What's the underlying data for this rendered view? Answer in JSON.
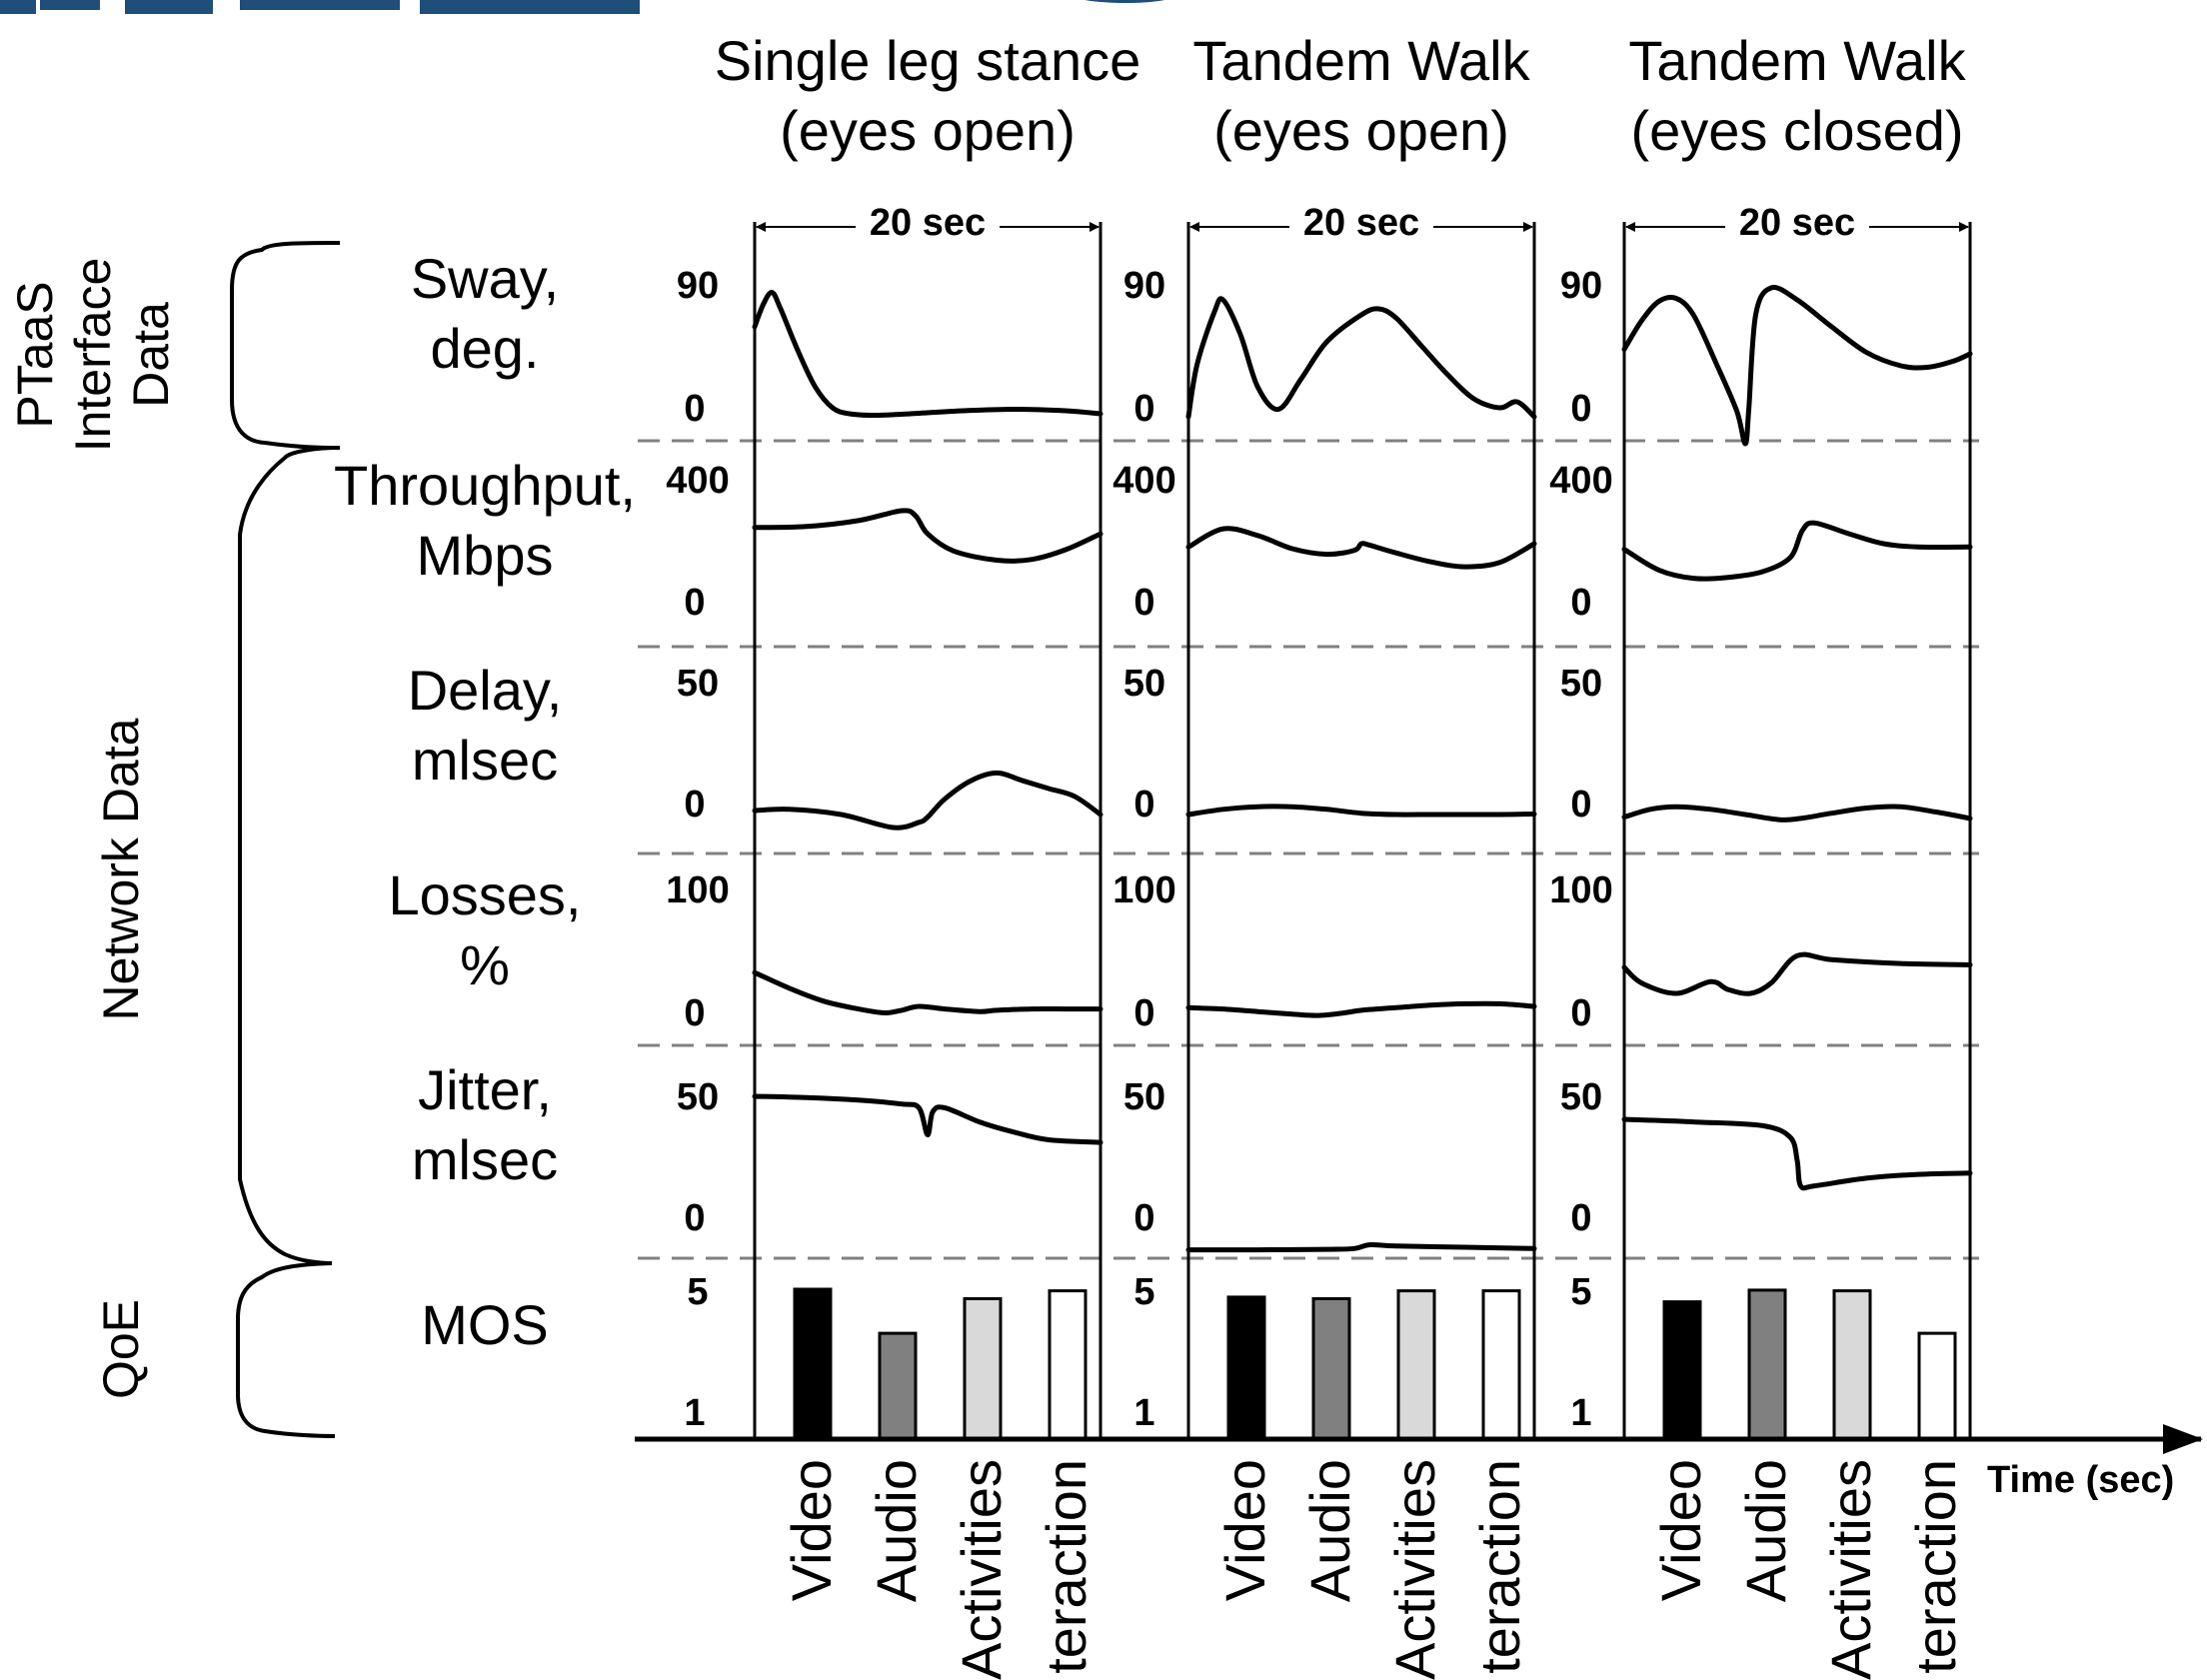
{
  "chart_data": {
    "type": "line",
    "x_axis_label": "Time (sec)",
    "duration_label": "20 sec",
    "groups": [
      {
        "label": "PTaaS Interface Data"
      },
      {
        "label": "Network Data"
      },
      {
        "label": "QoE"
      }
    ],
    "metrics": [
      {
        "key": "sway",
        "label_lines": [
          "Sway,",
          "deg."
        ],
        "ymax_label": "90",
        "ymin_label": "0",
        "ylim": [
          0,
          90
        ]
      },
      {
        "key": "throughput",
        "label_lines": [
          "Throughput,",
          "Mbps"
        ],
        "ymax_label": "400",
        "ymin_label": "0",
        "ylim": [
          0,
          400
        ]
      },
      {
        "key": "delay",
        "label_lines": [
          "Delay,",
          "mlsec"
        ],
        "ymax_label": "50",
        "ymin_label": "0",
        "ylim": [
          0,
          50
        ]
      },
      {
        "key": "losses",
        "label_lines": [
          "Losses,",
          "%"
        ],
        "ymax_label": "100",
        "ymin_label": "0",
        "ylim": [
          0,
          100
        ]
      },
      {
        "key": "jitter",
        "label_lines": [
          "Jitter,",
          "mlsec"
        ],
        "ymax_label": "50",
        "ymin_label": "0",
        "ylim": [
          0,
          50
        ]
      },
      {
        "key": "mos",
        "label_lines": [
          "MOS"
        ],
        "ymax_label": "5",
        "ymin_label": "1",
        "ylim": [
          1,
          5
        ]
      }
    ],
    "bar_categories": [
      "Video",
      "Audio",
      "Activities",
      "teraction"
    ],
    "bar_colors": [
      "#000000",
      "#808080",
      "#d9d9d9",
      "#ffffff"
    ],
    "tasks": [
      {
        "title_lines": [
          "Single leg stance",
          "(eyes open)"
        ],
        "series": {
          "sway": [
            [
              0,
              60
            ],
            [
              0.5,
              75
            ],
            [
              1,
              83
            ],
            [
              1.5,
              72
            ],
            [
              2.5,
              44
            ],
            [
              3.5,
              20
            ],
            [
              4.5,
              6
            ],
            [
              5.5,
              2
            ],
            [
              7,
              1
            ],
            [
              9,
              2
            ],
            [
              12,
              4
            ],
            [
              15,
              5
            ],
            [
              18,
              4
            ],
            [
              20,
              2
            ]
          ],
          "throughput": [
            [
              0,
              249
            ],
            [
              3,
              252
            ],
            [
              6,
              270
            ],
            [
              8.5,
              300
            ],
            [
              9.3,
              285
            ],
            [
              10,
              230
            ],
            [
              11.5,
              178
            ],
            [
              14,
              150
            ],
            [
              16,
              152
            ],
            [
              18,
              182
            ],
            [
              20,
              230
            ]
          ],
          "delay": [
            [
              0,
              1.5
            ],
            [
              2,
              2
            ],
            [
              5,
              0
            ],
            [
              8,
              -5
            ],
            [
              9.5,
              -3
            ],
            [
              10,
              -1
            ],
            [
              11,
              6
            ],
            [
              12.5,
              13
            ],
            [
              14,
              16
            ],
            [
              15.5,
              13
            ],
            [
              17,
              10
            ],
            [
              18.5,
              7
            ],
            [
              20,
              0
            ]
          ],
          "losses": [
            [
              0,
              36
            ],
            [
              2,
              24
            ],
            [
              4,
              14
            ],
            [
              6,
              8
            ],
            [
              7.5,
              5
            ],
            [
              8.5,
              7
            ],
            [
              9.5,
              10
            ],
            [
              11,
              8
            ],
            [
              13,
              6
            ],
            [
              14,
              7
            ],
            [
              16,
              8
            ],
            [
              18,
              8
            ],
            [
              20,
              8
            ]
          ],
          "jitter": [
            [
              0,
              50
            ],
            [
              3,
              49.5
            ],
            [
              6,
              48.5
            ],
            [
              8.5,
              47
            ],
            [
              9.5,
              45.5
            ],
            [
              10,
              35
            ],
            [
              10.3,
              44
            ],
            [
              11,
              45.5
            ],
            [
              13,
              40
            ],
            [
              15,
              36
            ],
            [
              17,
              33
            ],
            [
              20,
              32
            ]
          ],
          "mos": [
            5.0,
            3.6,
            4.7,
            4.95
          ]
        }
      },
      {
        "title_lines": [
          "Tandem Walk",
          "(eyes open)"
        ],
        "series": {
          "sway": [
            [
              0,
              0
            ],
            [
              0.5,
              35
            ],
            [
              1.5,
              70
            ],
            [
              2,
              78
            ],
            [
              3,
              55
            ],
            [
              4,
              20
            ],
            [
              5.2,
              5
            ],
            [
              6.5,
              25
            ],
            [
              8,
              50
            ],
            [
              10,
              68
            ],
            [
              11,
              72
            ],
            [
              12,
              66
            ],
            [
              13.5,
              47
            ],
            [
              15,
              28
            ],
            [
              16.5,
              12
            ],
            [
              18,
              6
            ],
            [
              19,
              10
            ],
            [
              20,
              0
            ]
          ],
          "throughput": [
            [
              0,
              190
            ],
            [
              2,
              245
            ],
            [
              4,
              225
            ],
            [
              6,
              185
            ],
            [
              8,
              168
            ],
            [
              9.6,
              180
            ],
            [
              10,
              200
            ],
            [
              10.5,
              195
            ],
            [
              12,
              172
            ],
            [
              14,
              145
            ],
            [
              16,
              130
            ],
            [
              18,
              143
            ],
            [
              20,
              200
            ]
          ],
          "delay": [
            [
              0,
              0
            ],
            [
              2,
              2
            ],
            [
              4,
              3
            ],
            [
              6,
              3
            ],
            [
              8,
              2
            ],
            [
              10,
              0.5
            ],
            [
              12,
              0
            ],
            [
              14,
              0
            ],
            [
              16,
              0
            ],
            [
              18,
              0
            ],
            [
              20,
              0.2
            ]
          ],
          "losses": [
            [
              0,
              9
            ],
            [
              2,
              8
            ],
            [
              4,
              6
            ],
            [
              6,
              4
            ],
            [
              7.5,
              3
            ],
            [
              9,
              5
            ],
            [
              10,
              7
            ],
            [
              12,
              9
            ],
            [
              14,
              11
            ],
            [
              16,
              12
            ],
            [
              18,
              12
            ],
            [
              20,
              10
            ]
          ],
          "jitter": [
            [
              0,
              -10
            ],
            [
              4,
              -10
            ],
            [
              8,
              -9.8
            ],
            [
              9.6,
              -9.5
            ],
            [
              10.5,
              -8
            ],
            [
              12,
              -8.5
            ],
            [
              16,
              -9
            ],
            [
              20,
              -9.5
            ]
          ],
          "mos": [
            4.75,
            4.7,
            4.95,
            4.95
          ]
        }
      },
      {
        "title_lines": [
          "Tandem Walk",
          "(eyes closed)"
        ],
        "series": {
          "sway": [
            [
              0,
              45
            ],
            [
              1,
              64
            ],
            [
              2,
              77
            ],
            [
              3,
              79
            ],
            [
              4,
              68
            ],
            [
              5.3,
              36
            ],
            [
              6.5,
              4
            ],
            [
              7,
              -18
            ],
            [
              7.2,
              5
            ],
            [
              7.6,
              68
            ],
            [
              8.5,
              86
            ],
            [
              10,
              78
            ],
            [
              12,
              60
            ],
            [
              14,
              43
            ],
            [
              16,
              34
            ],
            [
              17.5,
              33
            ],
            [
              19,
              37
            ],
            [
              20,
              42
            ]
          ],
          "throughput": [
            [
              0,
              183
            ],
            [
              2,
              120
            ],
            [
              4,
              95
            ],
            [
              6,
              98
            ],
            [
              8,
              115
            ],
            [
              9.6,
              158
            ],
            [
              10.3,
              240
            ],
            [
              11,
              263
            ],
            [
              13,
              230
            ],
            [
              15,
              200
            ],
            [
              17,
              190
            ],
            [
              20,
              190
            ]
          ],
          "delay": [
            [
              0,
              -1
            ],
            [
              1.5,
              2
            ],
            [
              3,
              3
            ],
            [
              5,
              2
            ],
            [
              7,
              0
            ],
            [
              9,
              -2
            ],
            [
              10.2,
              -1.5
            ],
            [
              12,
              0.5
            ],
            [
              14,
              2.5
            ],
            [
              16,
              3
            ],
            [
              18,
              1
            ],
            [
              20,
              -1.5
            ]
          ],
          "losses": [
            [
              0,
              40
            ],
            [
              1,
              28
            ],
            [
              3,
              20
            ],
            [
              5,
              29
            ],
            [
              6,
              23
            ],
            [
              7.3,
              20
            ],
            [
              8.5,
              28
            ],
            [
              10,
              49
            ],
            [
              12,
              46
            ],
            [
              16,
              43
            ],
            [
              20,
              42
            ]
          ],
          "jitter": [
            [
              0,
              41
            ],
            [
              4,
              40
            ],
            [
              8,
              38.5
            ],
            [
              9.6,
              34
            ],
            [
              10,
              25
            ],
            [
              10.2,
              15
            ],
            [
              11,
              15
            ],
            [
              14,
              18
            ],
            [
              17,
              19.5
            ],
            [
              20,
              20
            ]
          ],
          "mos": [
            4.6,
            4.97,
            4.95,
            3.6
          ]
        }
      }
    ]
  }
}
